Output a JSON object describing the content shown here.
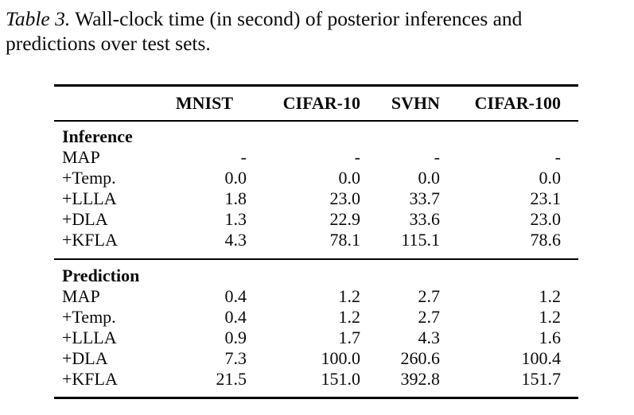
{
  "caption": {
    "prefix": "Table 3.",
    "line1_rest": " Wall-clock time (in second) of posterior inferences and",
    "line2": "predictions over test sets."
  },
  "table": {
    "columns": [
      "",
      "MNIST",
      "CIFAR-10",
      "SVHN",
      "CIFAR-100"
    ],
    "sections": [
      {
        "title": "Inference",
        "rows": [
          {
            "label": "MAP",
            "values": [
              "-",
              "-",
              "-",
              "-"
            ]
          },
          {
            "label": "+Temp.",
            "values": [
              "0.0",
              "0.0",
              "0.0",
              "0.0"
            ]
          },
          {
            "label": "+LLLA",
            "values": [
              "1.8",
              "23.0",
              "33.7",
              "23.1"
            ]
          },
          {
            "label": "+DLA",
            "values": [
              "1.3",
              "22.9",
              "33.6",
              "23.0"
            ]
          },
          {
            "label": "+KFLA",
            "values": [
              "4.3",
              "78.1",
              "115.1",
              "78.6"
            ]
          }
        ]
      },
      {
        "title": "Prediction",
        "rows": [
          {
            "label": "MAP",
            "values": [
              "0.4",
              "1.2",
              "2.7",
              "1.2"
            ]
          },
          {
            "label": "+Temp.",
            "values": [
              "0.4",
              "1.2",
              "2.7",
              "1.2"
            ]
          },
          {
            "label": "+LLLA",
            "values": [
              "0.9",
              "1.7",
              "4.3",
              "1.6"
            ]
          },
          {
            "label": "+DLA",
            "values": [
              "7.3",
              "100.0",
              "260.6",
              "100.4"
            ]
          },
          {
            "label": "+KFLA",
            "values": [
              "21.5",
              "151.0",
              "392.8",
              "151.7"
            ]
          }
        ]
      }
    ]
  }
}
